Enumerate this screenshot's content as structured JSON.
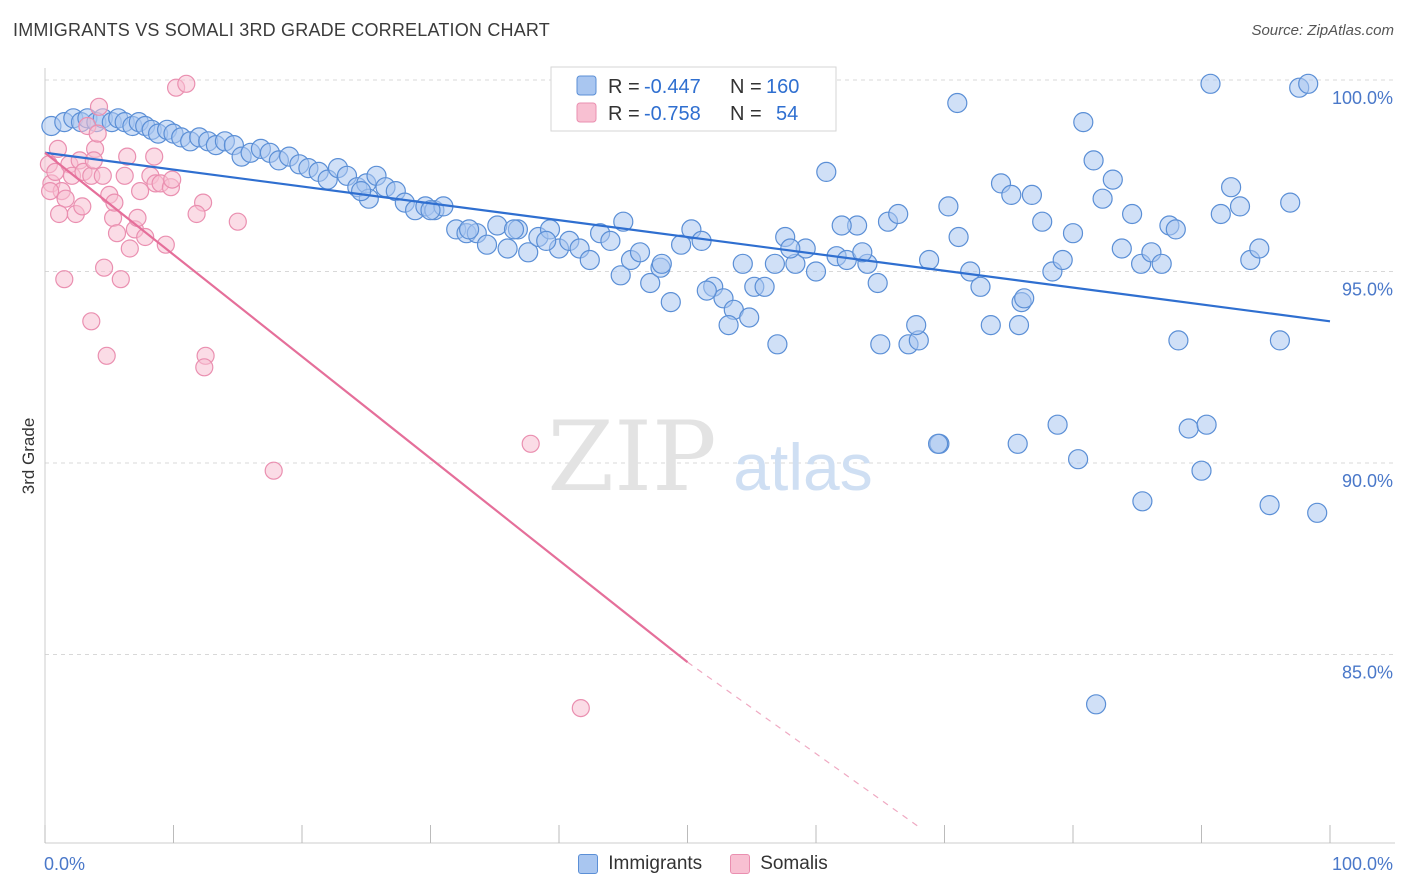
{
  "title": "IMMIGRANTS VS SOMALI 3RD GRADE CORRELATION CHART",
  "source": "Source: ZipAtlas.com",
  "watermark": {
    "zip": "ZIP",
    "atlas": "atlas"
  },
  "legend_box": {
    "rows": [
      {
        "r_label": "R =",
        "r_value": "-0.447",
        "n_label": "N =",
        "n_value": "160",
        "color": "#4a78c9"
      },
      {
        "r_label": "R =",
        "r_value": "-0.758",
        "n_label": "N =",
        "n_value": " 54",
        "color": "#e56f9a"
      }
    ]
  },
  "bottom_legend": {
    "items": [
      {
        "label": "Immigrants"
      },
      {
        "label": "Somalis"
      }
    ]
  },
  "colors": {
    "blue_fill": "#a9c6f0",
    "blue_stroke": "#5b8fd6",
    "blue_line": "#2f6fd0",
    "pink_fill": "#f8c0d2",
    "pink_stroke": "#ea8fb0",
    "pink_line": "#e56f9a",
    "tick_text": "#4a78c9",
    "grid": "#d8d8d8"
  },
  "chart_data": {
    "type": "scatter",
    "title": "IMMIGRANTS VS SOMALI 3RD GRADE CORRELATION CHART",
    "xlabel": "",
    "ylabel": "3rd Grade",
    "xlim": [
      0,
      100
    ],
    "ylim": [
      80.5,
      100.5
    ],
    "x_tick_labels": [
      "0.0%",
      "100.0%"
    ],
    "y_ticks": [
      {
        "value": 100,
        "label": "100.0%"
      },
      {
        "value": 95,
        "label": "95.0%"
      },
      {
        "value": 90,
        "label": "90.0%"
      },
      {
        "value": 85,
        "label": "85.0%"
      }
    ],
    "grid": true,
    "legend_position": "top-center",
    "series": [
      {
        "name": "Immigrants",
        "trend": {
          "x0": 0,
          "y0": 98.1,
          "x1": 100,
          "y1": 93.7
        },
        "points": [
          [
            0.5,
            98.8
          ],
          [
            1.5,
            98.9
          ],
          [
            2.2,
            99.0
          ],
          [
            2.8,
            98.9
          ],
          [
            3.3,
            99.0
          ],
          [
            4.0,
            98.9
          ],
          [
            4.5,
            99.0
          ],
          [
            5.2,
            98.9
          ],
          [
            5.7,
            99.0
          ],
          [
            6.2,
            98.9
          ],
          [
            6.8,
            98.8
          ],
          [
            7.3,
            98.9
          ],
          [
            7.8,
            98.8
          ],
          [
            8.3,
            98.7
          ],
          [
            8.8,
            98.6
          ],
          [
            9.5,
            98.7
          ],
          [
            10.0,
            98.6
          ],
          [
            10.6,
            98.5
          ],
          [
            11.3,
            98.4
          ],
          [
            12.0,
            98.5
          ],
          [
            12.7,
            98.4
          ],
          [
            13.3,
            98.3
          ],
          [
            14.0,
            98.4
          ],
          [
            14.7,
            98.3
          ],
          [
            15.3,
            98.0
          ],
          [
            16.0,
            98.1
          ],
          [
            16.8,
            98.2
          ],
          [
            17.5,
            98.1
          ],
          [
            18.2,
            97.9
          ],
          [
            19.0,
            98.0
          ],
          [
            19.8,
            97.8
          ],
          [
            20.5,
            97.7
          ],
          [
            21.3,
            97.6
          ],
          [
            22.0,
            97.4
          ],
          [
            22.8,
            97.7
          ],
          [
            23.5,
            97.5
          ],
          [
            24.3,
            97.2
          ],
          [
            25.0,
            97.3
          ],
          [
            25.8,
            97.5
          ],
          [
            26.5,
            97.2
          ],
          [
            27.3,
            97.1
          ],
          [
            28.0,
            96.8
          ],
          [
            28.8,
            96.6
          ],
          [
            29.6,
            96.7
          ],
          [
            30.3,
            96.6
          ],
          [
            31.0,
            96.7
          ],
          [
            32.0,
            96.1
          ],
          [
            32.8,
            96.0
          ],
          [
            33.6,
            96.0
          ],
          [
            34.4,
            95.7
          ],
          [
            35.2,
            96.2
          ],
          [
            36.0,
            95.6
          ],
          [
            36.8,
            96.1
          ],
          [
            37.6,
            95.5
          ],
          [
            38.4,
            95.9
          ],
          [
            39.3,
            96.1
          ],
          [
            40.0,
            95.6
          ],
          [
            40.8,
            95.8
          ],
          [
            41.6,
            95.6
          ],
          [
            42.4,
            95.3
          ],
          [
            43.2,
            96.0
          ],
          [
            44.0,
            95.8
          ],
          [
            44.8,
            94.9
          ],
          [
            45.6,
            95.3
          ],
          [
            46.3,
            95.5
          ],
          [
            47.1,
            94.7
          ],
          [
            47.9,
            95.1
          ],
          [
            48.7,
            94.2
          ],
          [
            49.5,
            95.7
          ],
          [
            50.3,
            96.1
          ],
          [
            51.1,
            95.8
          ],
          [
            52.0,
            94.6
          ],
          [
            52.8,
            94.3
          ],
          [
            53.6,
            94.0
          ],
          [
            54.3,
            95.2
          ],
          [
            55.2,
            94.6
          ],
          [
            56.0,
            94.6
          ],
          [
            56.8,
            95.2
          ],
          [
            57.6,
            95.9
          ],
          [
            58.4,
            95.2
          ],
          [
            59.2,
            95.6
          ],
          [
            60.0,
            95.0
          ],
          [
            60.8,
            97.6
          ],
          [
            61.6,
            95.4
          ],
          [
            62.4,
            95.3
          ],
          [
            63.2,
            96.2
          ],
          [
            64.0,
            95.2
          ],
          [
            64.8,
            94.7
          ],
          [
            65.6,
            96.3
          ],
          [
            66.4,
            96.5
          ],
          [
            67.2,
            93.1
          ],
          [
            68.0,
            93.2
          ],
          [
            68.8,
            95.3
          ],
          [
            69.6,
            90.5
          ],
          [
            70.3,
            96.7
          ],
          [
            71.1,
            95.9
          ],
          [
            72.0,
            95.0
          ],
          [
            72.8,
            94.6
          ],
          [
            73.6,
            93.6
          ],
          [
            74.4,
            97.3
          ],
          [
            75.2,
            97.0
          ],
          [
            76.0,
            94.2
          ],
          [
            76.8,
            97.0
          ],
          [
            77.6,
            96.3
          ],
          [
            78.4,
            95.0
          ],
          [
            79.2,
            95.3
          ],
          [
            80.0,
            96.0
          ],
          [
            80.8,
            98.9
          ],
          [
            81.6,
            97.9
          ],
          [
            82.3,
            96.9
          ],
          [
            83.1,
            97.4
          ],
          [
            83.8,
            95.6
          ],
          [
            84.6,
            96.5
          ],
          [
            85.3,
            95.2
          ],
          [
            86.1,
            95.5
          ],
          [
            86.9,
            95.2
          ],
          [
            87.5,
            96.2
          ],
          [
            88.2,
            93.2
          ],
          [
            89.0,
            90.9
          ],
          [
            90.0,
            89.8
          ],
          [
            90.7,
            99.9
          ],
          [
            91.5,
            96.5
          ],
          [
            92.3,
            97.2
          ],
          [
            93.0,
            96.7
          ],
          [
            93.8,
            95.3
          ],
          [
            94.5,
            95.6
          ],
          [
            95.3,
            88.9
          ],
          [
            96.1,
            93.2
          ],
          [
            96.9,
            96.8
          ],
          [
            97.6,
            99.8
          ],
          [
            98.3,
            99.9
          ],
          [
            99.0,
            88.7
          ],
          [
            81.8,
            83.7
          ],
          [
            85.4,
            89.0
          ],
          [
            69.5,
            90.5
          ],
          [
            75.7,
            90.5
          ],
          [
            90.4,
            91.0
          ],
          [
            78.8,
            91.0
          ],
          [
            71.0,
            99.4
          ],
          [
            80.4,
            90.1
          ],
          [
            76.2,
            94.3
          ],
          [
            75.8,
            93.6
          ],
          [
            88.0,
            96.1
          ],
          [
            65.0,
            93.1
          ],
          [
            62.0,
            96.2
          ],
          [
            57.0,
            93.1
          ],
          [
            53.2,
            93.6
          ],
          [
            58.0,
            95.6
          ],
          [
            30.0,
            96.6
          ],
          [
            25.2,
            96.9
          ],
          [
            24.6,
            97.1
          ],
          [
            33.0,
            96.1
          ],
          [
            36.5,
            96.1
          ],
          [
            39.0,
            95.8
          ],
          [
            45.0,
            96.3
          ],
          [
            48.0,
            95.2
          ],
          [
            51.5,
            94.5
          ],
          [
            54.8,
            93.8
          ],
          [
            63.6,
            95.5
          ],
          [
            67.8,
            93.6
          ]
        ]
      },
      {
        "name": "Somalis",
        "trend": {
          "x0": 0,
          "y0": 98.1,
          "x1": 50,
          "y1": 84.8,
          "dash_x1": 68,
          "dash_y1": 80.5
        },
        "points": [
          [
            0.3,
            97.8
          ],
          [
            0.5,
            97.3
          ],
          [
            0.8,
            97.6
          ],
          [
            1.0,
            98.2
          ],
          [
            1.3,
            97.1
          ],
          [
            1.6,
            96.9
          ],
          [
            1.9,
            97.8
          ],
          [
            2.1,
            97.5
          ],
          [
            2.4,
            96.5
          ],
          [
            2.7,
            97.9
          ],
          [
            3.0,
            97.6
          ],
          [
            3.3,
            98.8
          ],
          [
            3.6,
            97.5
          ],
          [
            3.9,
            98.2
          ],
          [
            4.2,
            99.3
          ],
          [
            4.5,
            97.5
          ],
          [
            5.0,
            97.0
          ],
          [
            5.3,
            96.4
          ],
          [
            5.6,
            96.0
          ],
          [
            5.9,
            94.8
          ],
          [
            6.2,
            97.5
          ],
          [
            6.6,
            95.6
          ],
          [
            7.0,
            96.1
          ],
          [
            7.4,
            97.1
          ],
          [
            7.8,
            95.9
          ],
          [
            8.2,
            97.5
          ],
          [
            8.6,
            97.3
          ],
          [
            9.0,
            97.3
          ],
          [
            9.4,
            95.7
          ],
          [
            9.8,
            97.2
          ],
          [
            10.2,
            99.8
          ],
          [
            11.0,
            99.9
          ],
          [
            1.5,
            94.8
          ],
          [
            3.6,
            93.7
          ],
          [
            4.6,
            95.1
          ],
          [
            4.8,
            92.8
          ],
          [
            12.5,
            92.8
          ],
          [
            12.4,
            92.5
          ],
          [
            12.3,
            96.8
          ],
          [
            15.0,
            96.3
          ],
          [
            17.8,
            89.8
          ],
          [
            37.8,
            90.5
          ],
          [
            41.7,
            83.6
          ],
          [
            8.5,
            98.0
          ],
          [
            9.9,
            97.4
          ],
          [
            4.1,
            98.6
          ],
          [
            2.9,
            96.7
          ],
          [
            5.4,
            96.8
          ],
          [
            6.4,
            98.0
          ],
          [
            7.2,
            96.4
          ],
          [
            0.4,
            97.1
          ],
          [
            1.1,
            96.5
          ],
          [
            11.8,
            96.5
          ],
          [
            3.8,
            97.9
          ]
        ]
      }
    ]
  }
}
